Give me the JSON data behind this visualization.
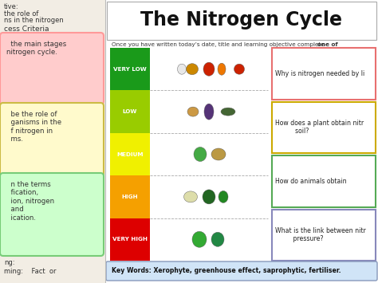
{
  "title": "The Nitrogen Cycle",
  "subtitle_plain": "Once you have written today’s date, title and learning objective complete ",
  "subtitle_bold": "one of",
  "bg_color": "#ffffff",
  "sidebar_bg": "#f2ede4",
  "sidebar_texts": [
    "tive:",
    "the role of",
    "ns in the nitrogen",
    "cess Criteria"
  ],
  "sidebar_boxes": [
    {
      "text": "  the main stages\nnitrogen cycle.",
      "bg": "#ffcccc",
      "border": "#ff8888"
    },
    {
      "text": "  be the role of\n  ganisms in the\n  f nitrogen in\n  ms.",
      "bg": "#fffacc",
      "border": "#ccbb44"
    },
    {
      "text": "  n the terms\n  fication,\n  ion, nitrogen\n  and\n  ication.",
      "bg": "#ccffcc",
      "border": "#77cc77"
    }
  ],
  "nitro_levels": [
    {
      "label": "VERY LOW",
      "color": "#1a9a1a"
    },
    {
      "label": "LOW",
      "color": "#99cc00"
    },
    {
      "label": "MEDIUM",
      "color": "#f0f000"
    },
    {
      "label": "HIGH",
      "color": "#f5a000"
    },
    {
      "label": "VERY HIGH",
      "color": "#dd0000"
    }
  ],
  "questions": [
    {
      "text": "Why is nitrogen needed by li",
      "border": "#e87070",
      "bg": "#ffffff"
    },
    {
      "text": "How does a plant obtain nitr\n          soil?",
      "border": "#ccaa00",
      "bg": "#ffffff"
    },
    {
      "text": "How do animals obtain",
      "border": "#55aa55",
      "bg": "#ffffff"
    },
    {
      "text": "What is the link between nitr\n         pressure?",
      "border": "#8888bb",
      "bg": "#ffffff"
    }
  ],
  "keywords_text": "Key Words: Xerophyte, greenhouse effect, saprophytic, fertiliser.",
  "keywords_bg": "#d0e4f7",
  "keywords_border": "#8899bb",
  "main_box_border": "#aaaaaa",
  "title_box_border": "#aaaaaa"
}
